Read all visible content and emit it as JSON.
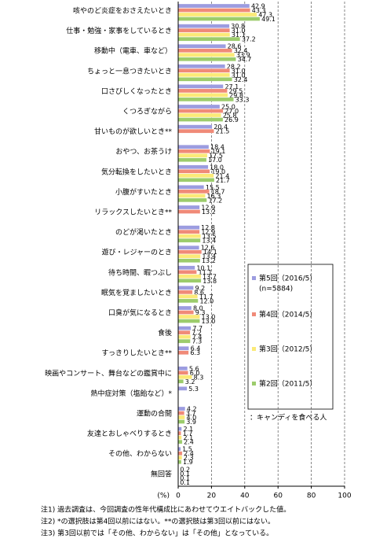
{
  "chart_data": {
    "type": "hbar",
    "categories": [
      "咳やのど炎症をおさえたいとき",
      "仕事・勉強・家事をしているとき",
      "移動中（電車、車など）",
      "ちょっと一息つきたいとき",
      "口さびしくなったとき",
      "くつろぎながら",
      "甘いものが欲しいとき**",
      "おやつ、お茶うけ",
      "気分転換をしたいとき",
      "小腹がすいたとき",
      "リラックスしたいとき**",
      "のどが渇いたとき",
      "遊び・レジャーのとき",
      "待ち時間、暇つぶし",
      "眠気を覚ましたいとき",
      "口臭が気になるとき",
      "食後",
      "すっきりしたいとき**",
      "映画やコンサート、舞台などの鑑賞中に",
      "熱中症対策（塩飴など）*",
      "運動の合間",
      "友達とおしゃべりするとき",
      "その他、わからない",
      "無回答"
    ],
    "series": [
      {
        "name": "第5回（2016/5）",
        "color": "#9c9ce0",
        "values": [
          42.9,
          30.8,
          28.6,
          28.2,
          27.1,
          25.0,
          20.4,
          18.4,
          18.0,
          15.5,
          12.9,
          12.8,
          12.6,
          10.1,
          9.2,
          8.0,
          7.7,
          6.4,
          5.6,
          5.3,
          4.2,
          2.1,
          1.5,
          0.2
        ],
        "value_labels": [
          "42.9",
          "30.8",
          "28.6",
          "28.2",
          "27.1",
          "25.0",
          "20.4",
          "18.4",
          "18.0",
          "15.5",
          "12.9",
          "12.8",
          "12.6",
          "10.1",
          "9.2",
          "8.0",
          "7.7",
          "6.4",
          "5.6",
          "5.3",
          "4.2",
          "2.1",
          "1.5",
          "0.2"
        ]
      },
      {
        "name": "第4回（2014/5）",
        "color": "#f08a78",
        "values": [
          43.3,
          31.0,
          32.4,
          31.0,
          29.5,
          27.0,
          21.5,
          19.1,
          19.0,
          18.7,
          13.2,
          12.9,
          14.1,
          11.1,
          8.6,
          9.3,
          7.2,
          6.3,
          6.0,
          null,
          3.7,
          1.7,
          2.4,
          0.1
        ],
        "value_labels": [
          "43.3",
          "31.0",
          "32.4",
          "31.0",
          "29.5",
          "27.0",
          "21.5",
          "19.1",
          "19.0",
          "18.7",
          "13.2",
          "12.9",
          "14.1",
          "11.1",
          "8.6",
          "9.3",
          "7.2",
          "6.3",
          "6.0",
          null,
          "3.7",
          "1.7",
          "2.4",
          "0.1"
        ]
      },
      {
        "name": "第3回（2012/5）",
        "color": "#fbea78",
        "values": [
          47.3,
          31.1,
          33.9,
          31.0,
          29.8,
          25.8,
          null,
          17.5,
          21.4,
          16.3,
          null,
          13.5,
          13.4,
          13.7,
          11.7,
          13.0,
          7.4,
          null,
          8.3,
          null,
          4.0,
          2.1,
          2.3,
          0.1
        ],
        "value_labels": [
          "47.3",
          "31.1",
          "33.9",
          "31.0",
          "29.8",
          "25.8",
          null,
          "17.5",
          "21.4",
          "16.3",
          null,
          "13.5",
          "13.4",
          "13.7",
          "11.7",
          "13.0",
          "7.4",
          null,
          "8.3",
          null,
          "4.0",
          "2.1",
          "2.3",
          "0.1"
        ]
      },
      {
        "name": "第2回（2011/5）",
        "color": "#9ccc6c",
        "values": [
          49.1,
          37.2,
          34.7,
          32.4,
          33.3,
          26.9,
          null,
          17.0,
          21.7,
          17.2,
          null,
          13.4,
          13.2,
          13.8,
          12.0,
          13.0,
          7.3,
          null,
          3.2,
          null,
          3.9,
          2.4,
          1.9,
          0.1
        ],
        "value_labels": [
          "49.1",
          "37.2",
          "34.7",
          "32.4",
          "33.3",
          "26.9",
          null,
          "17.0",
          "21.7",
          "17.2",
          null,
          "13.4",
          "13.2",
          "13.8",
          "12.0",
          "13.0",
          "7.3",
          null,
          "3.2",
          null,
          "3.9",
          "2.4",
          "1.9",
          "0.1"
        ]
      }
    ],
    "legend_note": "(n=5884)",
    "annotation": "：キャンディを食べる人",
    "xlabel": "(%)",
    "xlim": [
      0,
      100
    ],
    "xticks": [
      0,
      20,
      40,
      60,
      80,
      100
    ],
    "grid": true,
    "notes": [
      "注1) 過去調査は、今回調査の性年代構成比にあわせてウエイトバックした値。",
      "注2) *の選択肢は第4回以前にはない。**の選択肢は第3回以前にはない。",
      "注3) 第3回以前では「その他、わからない」は「その他」となっている。"
    ]
  }
}
